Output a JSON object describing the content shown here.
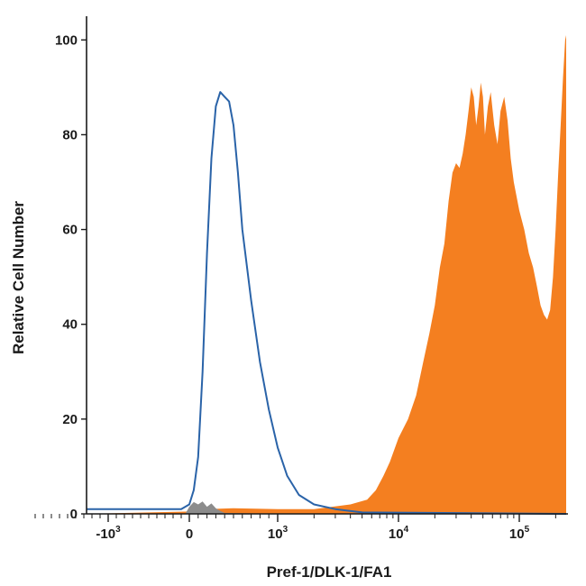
{
  "chart_data": {
    "type": "area",
    "title": "",
    "xlabel": "Pref-1/DLK-1/FA1",
    "ylabel": "Relative Cell Number",
    "x_scale": "biexponential",
    "xlim": [
      -2000,
      250000
    ],
    "ylim": [
      0,
      105
    ],
    "x_ticks": [
      {
        "value": -1000,
        "base": "-10",
        "exp": "3"
      },
      {
        "value": 0,
        "base": "0",
        "exp": ""
      },
      {
        "value": 1000,
        "base": "10",
        "exp": "3"
      },
      {
        "value": 10000,
        "base": "10",
        "exp": "4"
      },
      {
        "value": 100000,
        "base": "10",
        "exp": "5"
      }
    ],
    "y_ticks": [
      "0",
      "20",
      "40",
      "60",
      "80",
      "100"
    ],
    "y_tick_values": [
      0,
      20,
      40,
      60,
      80,
      100
    ],
    "grid": false,
    "legend": "none",
    "series": [
      {
        "style": "line",
        "color": "#2a63a8",
        "x": [
          -2000,
          -500,
          -100,
          0,
          50,
          100,
          150,
          200,
          250,
          300,
          350,
          400,
          450,
          500,
          550,
          600,
          700,
          800,
          900,
          1000,
          1200,
          1500,
          2000,
          3000,
          5000,
          250000
        ],
        "y": [
          1,
          1,
          1,
          2,
          5,
          12,
          30,
          55,
          75,
          86,
          89,
          88,
          87,
          82,
          72,
          60,
          45,
          32,
          22,
          14,
          8,
          4,
          2,
          1,
          0.3,
          0
        ]
      },
      {
        "style": "filled",
        "color": "#f47f20",
        "x": [
          -2000,
          0,
          200,
          500,
          1000,
          2000,
          4000,
          5500,
          6500,
          7500,
          8500,
          10000,
          12000,
          14000,
          16000,
          18000,
          20000,
          22000,
          24000,
          26000,
          28000,
          30000,
          32000,
          34000,
          36000,
          38000,
          40000,
          42000,
          44000,
          46000,
          48000,
          50000,
          52000,
          55000,
          58000,
          62000,
          66000,
          70000,
          75000,
          80000,
          85000,
          90000,
          100000,
          110000,
          120000,
          130000,
          140000,
          150000,
          160000,
          170000,
          180000,
          190000,
          200000,
          210000,
          220000,
          230000,
          240000,
          245000,
          250000
        ],
        "y": [
          0,
          0.5,
          1,
          1.2,
          1,
          1,
          2,
          3,
          5,
          8,
          11,
          16,
          20,
          25,
          32,
          38,
          44,
          52,
          57,
          66,
          72,
          74,
          73,
          76,
          80,
          85,
          90,
          88,
          82,
          86,
          91,
          88,
          80,
          86,
          89,
          82,
          78,
          85,
          88,
          83,
          75,
          70,
          64,
          60,
          55,
          52,
          48,
          44,
          42,
          41,
          43,
          50,
          60,
          72,
          82,
          92,
          100,
          101,
          0
        ]
      },
      {
        "style": "filled",
        "color": "#8c8c8c",
        "x": [
          -2000,
          -50,
          0,
          50,
          100,
          150,
          200,
          250,
          300,
          350,
          400,
          1000,
          250000
        ],
        "y": [
          0,
          0,
          1.5,
          2.5,
          2,
          2.6,
          1.5,
          2.2,
          1.2,
          0.6,
          0.2,
          0,
          0
        ]
      }
    ]
  }
}
